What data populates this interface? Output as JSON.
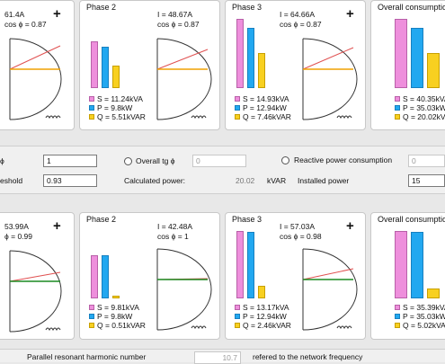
{
  "top": {
    "panel1": {
      "current": "61.4A",
      "cos": "cos ϕ = 0.87"
    },
    "phase2": {
      "title": "Phase 2",
      "current": "I = 48.67A",
      "cos": "cos ϕ = 0.87",
      "legend": {
        "s": "S = 11.24kVA",
        "p": "P = 9.8kW",
        "q": "Q = 5.51kVAR"
      },
      "bars": {
        "s": 0.78,
        "p": 0.68,
        "q": 0.37
      }
    },
    "phase3": {
      "title": "Phase 3",
      "current": "I = 64.66A",
      "cos": "cos ϕ = 0.87",
      "legend": {
        "s": "S = 14.93kVA",
        "p": "P = 12.94kW",
        "q": "Q = 7.46kVAR"
      },
      "bars": {
        "s": 1.0,
        "p": 0.87,
        "q": 0.5
      }
    },
    "overall": {
      "title": "Overall consumption",
      "legend": {
        "s": "S = 40.35kVA",
        "p": "P = 35.03kW",
        "q": "Q = 20.02kVAR"
      },
      "bars": {
        "s": 1.0,
        "p": 0.87,
        "q": 0.5
      }
    }
  },
  "settings": {
    "tg_label": "ϕ",
    "tg_value": "1",
    "overall_tg_label": "Overall tg ϕ",
    "overall_tg_value": "0",
    "reactive_label": "Reactive power consumption",
    "reactive_value": "0",
    "threshold_label": "eshold",
    "threshold_value": "0.93",
    "calc_label": "Calculated power:",
    "calc_value": "20.02",
    "calc_unit": "kVAR",
    "installed_label": "Installed power",
    "installed_value": "15"
  },
  "bottom": {
    "panel1": {
      "current": "53.99A",
      "cos": "ϕ = 0.99"
    },
    "phase2": {
      "title": "Phase 2",
      "current": "I = 42.48A",
      "cos": "cos ϕ = 1",
      "legend": {
        "s": "S = 9.81kVA",
        "p": "P = 9.8kW",
        "q": "Q = 0.51kVAR"
      },
      "bars": {
        "s": 0.74,
        "p": 0.74,
        "q": 0.04
      }
    },
    "phase3": {
      "title": "Phase 3",
      "current": "I = 57.03A",
      "cos": "cos ϕ = 0.98",
      "legend": {
        "s": "S = 13.17kVA",
        "p": "P = 12.94kW",
        "q": "Q = 2.46kVAR"
      },
      "bars": {
        "s": 1.0,
        "p": 0.98,
        "q": 0.19
      }
    },
    "overall": {
      "title": "Overall consumption",
      "legend": {
        "s": "S = 35.39kVA",
        "p": "P = 35.03kW",
        "q": "Q = 5.02kVAR"
      },
      "bars": {
        "s": 1.0,
        "p": 0.99,
        "q": 0.14
      }
    }
  },
  "footer": {
    "label": "Parallel resonant harmonic number",
    "value": "10.7",
    "suffix": "refered to the network frequency"
  }
}
